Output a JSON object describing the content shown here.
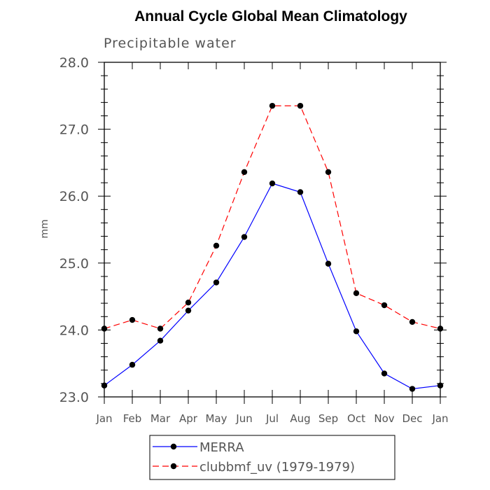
{
  "chart_data": {
    "type": "line",
    "title": "Annual Cycle Global Mean Climatology",
    "subtitle": "Precipitable water",
    "xlabel": "",
    "ylabel": "mm",
    "categories": [
      "Jan",
      "Feb",
      "Mar",
      "Apr",
      "May",
      "Jun",
      "Jul",
      "Aug",
      "Sep",
      "Oct",
      "Nov",
      "Dec",
      "Jan"
    ],
    "ylim": [
      23.0,
      28.0
    ],
    "yticks": [
      "23.0",
      "24.0",
      "25.0",
      "26.0",
      "27.0",
      "28.0"
    ],
    "series": [
      {
        "name": "MERRA",
        "color": "#0000ff",
        "dash": "solid",
        "marker": "filled-circle",
        "values": [
          23.17,
          23.48,
          23.84,
          24.29,
          24.71,
          25.39,
          26.19,
          26.06,
          24.99,
          23.98,
          23.35,
          23.12,
          23.17
        ]
      },
      {
        "name": "clubbmf_uv (1979-1979)",
        "color": "#ff0000",
        "dash": "dashed",
        "marker": "filled-circle",
        "values": [
          24.02,
          24.15,
          24.02,
          24.41,
          25.26,
          26.36,
          27.35,
          27.35,
          26.36,
          24.55,
          24.37,
          24.12,
          24.02
        ]
      }
    ],
    "legend_position": "bottom-center"
  }
}
